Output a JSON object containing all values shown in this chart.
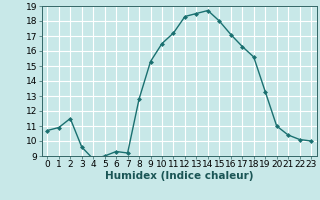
{
  "x": [
    0,
    1,
    2,
    3,
    4,
    5,
    6,
    7,
    8,
    9,
    10,
    11,
    12,
    13,
    14,
    15,
    16,
    17,
    18,
    19,
    20,
    21,
    22,
    23
  ],
  "y": [
    10.7,
    10.9,
    11.5,
    9.6,
    8.8,
    9.0,
    9.3,
    9.2,
    12.8,
    15.3,
    16.5,
    17.2,
    18.3,
    18.5,
    18.7,
    18.0,
    17.1,
    16.3,
    15.6,
    13.3,
    11.0,
    10.4,
    10.1,
    10.0
  ],
  "line_color": "#1a7070",
  "marker": "D",
  "marker_size": 2.0,
  "bg_color": "#c8e8e8",
  "grid_color": "#ffffff",
  "xlabel": "Humidex (Indice chaleur)",
  "xlim": [
    -0.5,
    23.5
  ],
  "ylim": [
    9,
    19
  ],
  "yticks": [
    9,
    10,
    11,
    12,
    13,
    14,
    15,
    16,
    17,
    18,
    19
  ],
  "xticks": [
    0,
    1,
    2,
    3,
    4,
    5,
    6,
    7,
    8,
    9,
    10,
    11,
    12,
    13,
    14,
    15,
    16,
    17,
    18,
    19,
    20,
    21,
    22,
    23
  ],
  "xlabel_fontsize": 7.5,
  "tick_fontsize": 6.5,
  "linewidth": 1.0
}
